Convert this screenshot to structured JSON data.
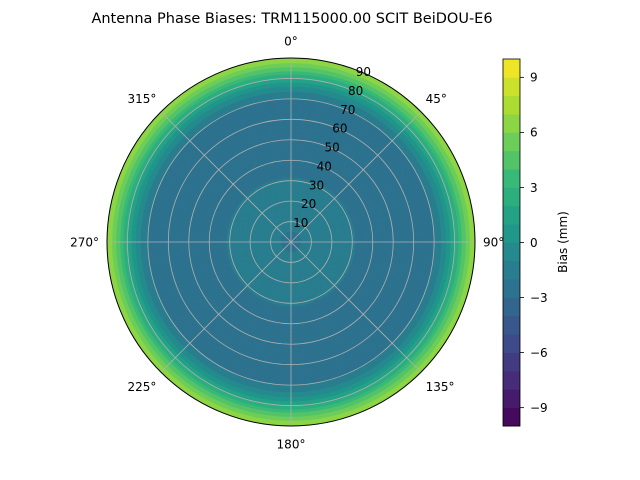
{
  "chart_data": {
    "type": "heatmap",
    "projection": "polar",
    "title": "Antenna Phase Biases: TRM115000.00    SCIT BeiDOU-E6",
    "angular_axis": {
      "direction": "clockwise",
      "zero_location": "top",
      "tick_labels": [
        "0°",
        "45°",
        "90°",
        "135°",
        "180°",
        "225°",
        "270°",
        "315°"
      ]
    },
    "radial_axis": {
      "range": [
        0,
        90
      ],
      "ticks": [
        10,
        20,
        30,
        40,
        50,
        60,
        70,
        80,
        90
      ],
      "tick_labels": [
        "10",
        "20",
        "30",
        "40",
        "50",
        "60",
        "70",
        "80",
        "90"
      ]
    },
    "grid": true,
    "colormap": "viridis",
    "colorbar": {
      "label": "Bias (mm)",
      "range": [
        -10,
        10
      ],
      "levels": 20,
      "ticks": [
        -9,
        -6,
        -3,
        0,
        3,
        6,
        9
      ],
      "tick_labels": [
        "−9",
        "−6",
        "−3",
        "0",
        "3",
        "6",
        "9"
      ],
      "placement": "right"
    },
    "radial_profile": {
      "zenith_angle": [
        0,
        10,
        20,
        30,
        40,
        50,
        60,
        70,
        75,
        80,
        85,
        90
      ],
      "bias_mm": [
        -2.4,
        -1.6,
        -1.2,
        -1.9,
        -2.6,
        -2.9,
        -2.8,
        -2.0,
        -0.5,
        2.0,
        4.8,
        7.0
      ]
    }
  }
}
